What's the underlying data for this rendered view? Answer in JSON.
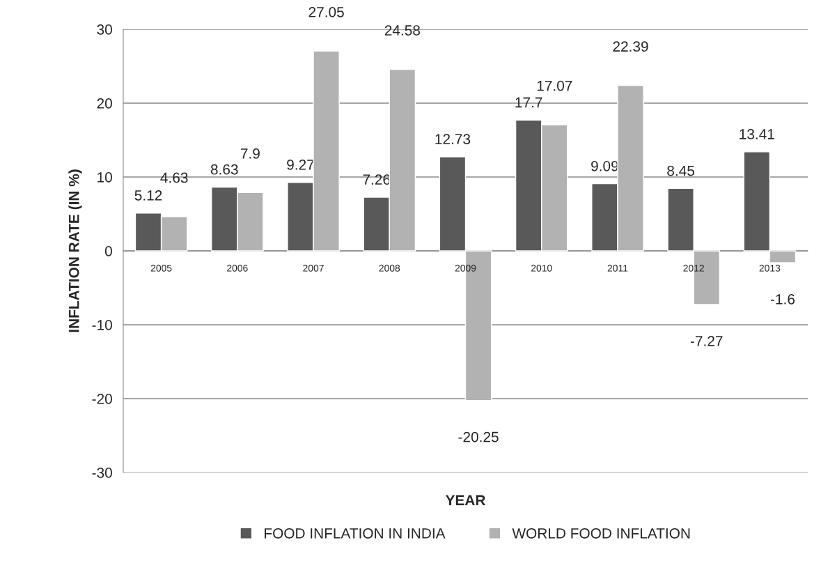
{
  "chart_data": {
    "type": "bar",
    "xlabel": "YEAR",
    "ylabel": "INFLATION RATE (IN %)",
    "categories": [
      "2005",
      "2006",
      "2007",
      "2008",
      "2009",
      "2010",
      "2011",
      "2012",
      "2013"
    ],
    "series": [
      {
        "name": "FOOD INFLATION IN INDIA",
        "color": "#595959",
        "values": [
          5.12,
          8.63,
          9.27,
          7.26,
          12.73,
          17.7,
          9.09,
          8.45,
          13.41
        ]
      },
      {
        "name": "WORLD FOOD INFLATION",
        "color": "#b2b2b2",
        "values": [
          4.63,
          7.9,
          27.05,
          24.58,
          -20.25,
          17.07,
          22.39,
          -7.27,
          -1.6
        ]
      }
    ],
    "ylim": [
      -30,
      30
    ],
    "yticks": [
      -30,
      -20,
      -10,
      0,
      10,
      20,
      30
    ],
    "grid": "y",
    "legend": "bottom",
    "data_labels": true
  }
}
